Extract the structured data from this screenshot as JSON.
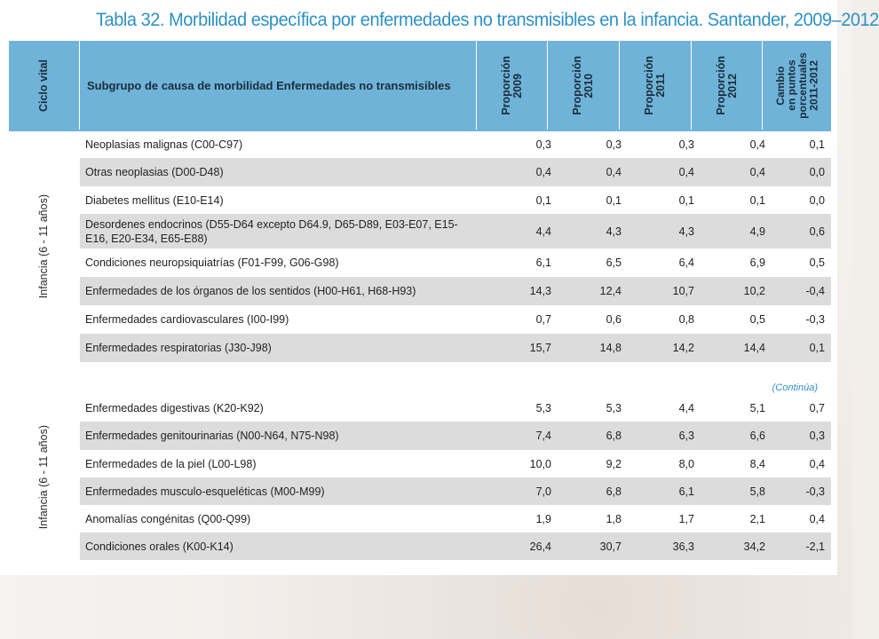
{
  "title": "Tabla 32. Morbilidad específica por enfermedades no transmisibles en la infancia. Santander, 2009–2012",
  "header": {
    "ciclo": "Ciclo vital",
    "subgrupo": "Subgrupo de causa de morbilidad Enfermedades no transmisibles",
    "p2009": "Proporción\n2009",
    "p2010": "Proporción\n2010",
    "p2011": "Proporción\n2011",
    "p2012": "Proporción\n2012",
    "cambio": "Cambio\nen puntos\nporcentuales\n2011-2012"
  },
  "sections": [
    {
      "label": "Infancia (6 - 11 años)",
      "rows": [
        {
          "name": "Neoplasias malignas (C00-C97)",
          "v2009": "0,3",
          "v2010": "0,3",
          "v2011": "0,3",
          "v2012": "0,4",
          "cambio": "0,1"
        },
        {
          "name": "Otras neoplasias (D00-D48)",
          "v2009": "0,4",
          "v2010": "0,4",
          "v2011": "0,4",
          "v2012": "0,4",
          "cambio": "0,0"
        },
        {
          "name": "Diabetes mellitus (E10-E14)",
          "v2009": "0,1",
          "v2010": "0,1",
          "v2011": "0,1",
          "v2012": "0,1",
          "cambio": "0,0"
        },
        {
          "name": "Desordenes endocrinos (D55-D64 excepto D64.9, D65-D89, E03-E07, E15-E16, E20-E34, E65-E88)",
          "v2009": "4,4",
          "v2010": "4,3",
          "v2011": "4,3",
          "v2012": "4,9",
          "cambio": "0,6"
        },
        {
          "name": "Condiciones neuropsiquiatrías (F01-F99, G06-G98)",
          "v2009": "6,1",
          "v2010": "6,5",
          "v2011": "6,4",
          "v2012": "6,9",
          "cambio": "0,5"
        },
        {
          "name": "Enfermedades de los órganos de los sentidos (H00-H61, H68-H93)",
          "v2009": "14,3",
          "v2010": "12,4",
          "v2011": "10,7",
          "v2012": "10,2",
          "cambio": "-0,4"
        },
        {
          "name": "Enfermedades cardiovasculares (I00-I99)",
          "v2009": "0,7",
          "v2010": "0,6",
          "v2011": "0,8",
          "v2012": "0,5",
          "cambio": "-0,3"
        },
        {
          "name": "Enfermedades respiratorias (J30-J98)",
          "v2009": "15,7",
          "v2010": "14,8",
          "v2011": "14,2",
          "v2012": "14,4",
          "cambio": "0,1"
        }
      ]
    },
    {
      "label": "Infancia (6 - 11 años)",
      "rows": [
        {
          "name": "Enfermedades digestivas (K20-K92)",
          "v2009": "5,3",
          "v2010": "5,3",
          "v2011": "4,4",
          "v2012": "5,1",
          "cambio": "0,7"
        },
        {
          "name": "Enfermedades genitourinarias (N00-N64, N75-N98)",
          "v2009": "7,4",
          "v2010": "6,8",
          "v2011": "6,3",
          "v2012": "6,6",
          "cambio": "0,3"
        },
        {
          "name": "Enfermedades de la piel (L00-L98)",
          "v2009": "10,0",
          "v2010": "9,2",
          "v2011": "8,0",
          "v2012": "8,4",
          "cambio": "0,4"
        },
        {
          "name": "Enfermedades musculo-esqueléticas (M00-M99)",
          "v2009": "7,0",
          "v2010": "6,8",
          "v2011": "6,1",
          "v2012": "5,8",
          "cambio": "-0,3"
        },
        {
          "name": "Anomalías congénitas (Q00-Q99)",
          "v2009": "1,9",
          "v2010": "1,8",
          "v2011": "1,7",
          "v2012": "2,1",
          "cambio": "0,4"
        },
        {
          "name": "Condiciones orales (K00-K14)",
          "v2009": "26,4",
          "v2010": "30,7",
          "v2011": "36,3",
          "v2012": "34,2",
          "cambio": "-2,1"
        }
      ]
    }
  ],
  "continua": "(Continúa)"
}
